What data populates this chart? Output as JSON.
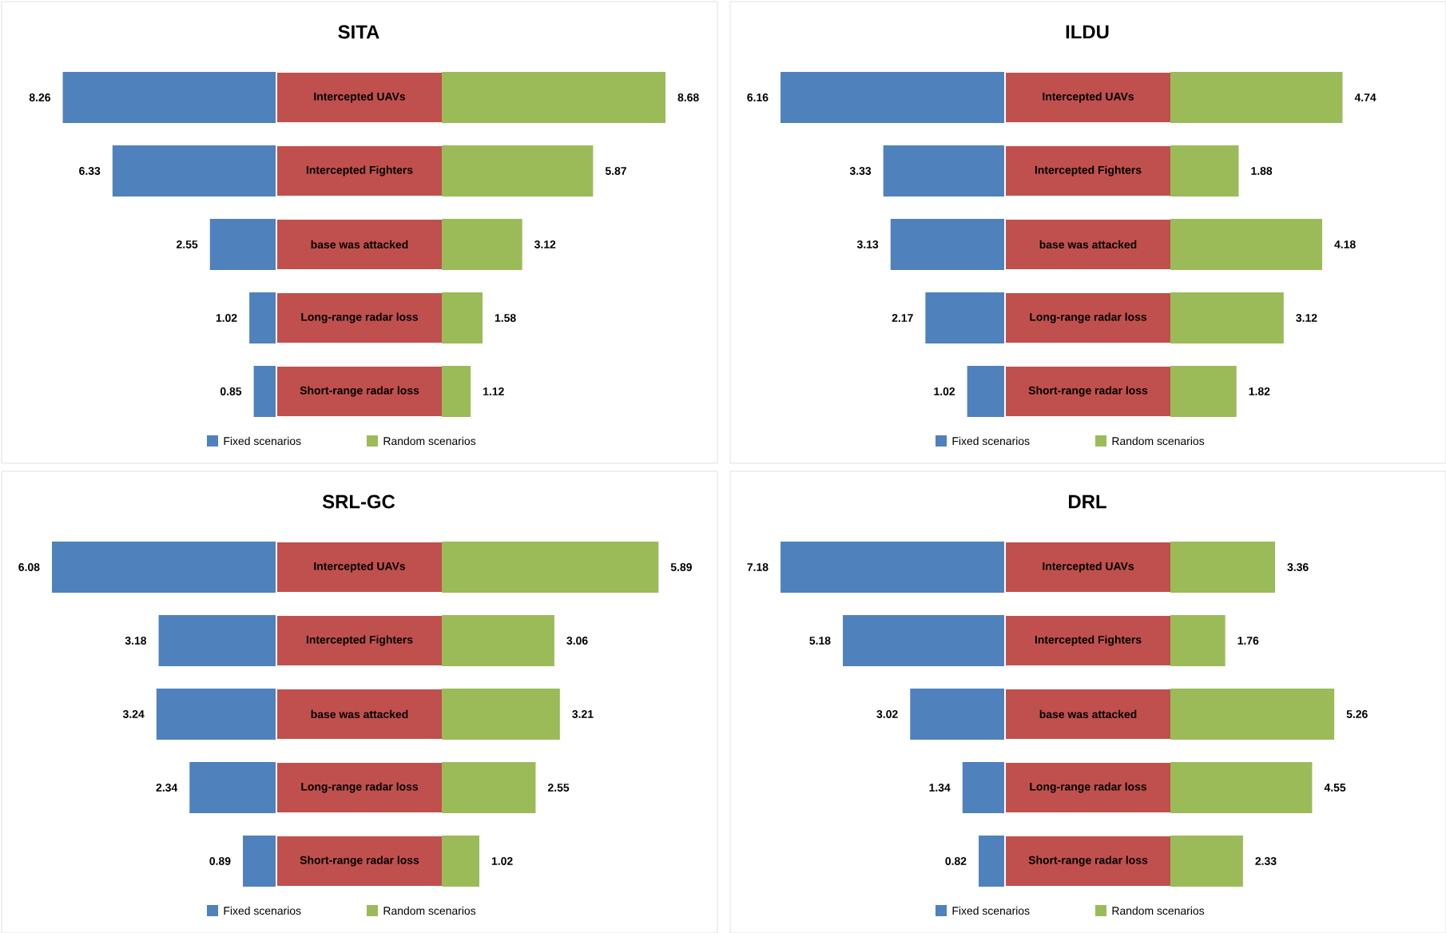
{
  "chart_data": [
    {
      "type": "bar",
      "orientation": "horizontal",
      "title": "SITA",
      "categories": [
        "Intercepted UAVs",
        "Intercepted Fighters",
        "base was attacked",
        "Long-range radar loss",
        "Short-range radar loss"
      ],
      "data_labels": true,
      "legend": "bottom",
      "series": [
        {
          "name": "Fixed scenarios",
          "color": "#4f81bd",
          "values": [
            8.26,
            6.33,
            2.55,
            1.02,
            0.85
          ]
        }
      ]
    },
    {
      "type": "bar",
      "orientation": "horizontal",
      "categories": [
        null,
        null,
        null,
        null,
        null
      ],
      "data_labels": true,
      "legend": "bottom",
      "series": [
        {
          "name": "Random scenarios",
          "color": "#9bbb59",
          "values": [
            8.68,
            5.87,
            3.12,
            1.58,
            1.12
          ]
        }
      ]
    },
    {
      "type": "bar",
      "orientation": "horizontal",
      "title": "ILDU",
      "categories": [
        "Intercepted UAVs",
        "Intercepted Fighters",
        "base was attacked",
        "Long-range radar loss",
        "Short-range radar loss"
      ],
      "data_labels": true,
      "legend": "bottom",
      "series": [
        {
          "name": "Fixed scenarios",
          "color": "#4f81bd",
          "values": [
            6.16,
            3.33,
            3.13,
            2.17,
            1.02
          ]
        }
      ]
    },
    {
      "type": "bar",
      "orientation": "horizontal",
      "categories": [
        null,
        null,
        null,
        null,
        null
      ],
      "data_labels": true,
      "legend": "bottom",
      "series": [
        {
          "name": "Random scenarios",
          "color": "#9bbb59",
          "values": [
            4.74,
            1.88,
            4.18,
            3.12,
            1.82
          ]
        }
      ]
    },
    {
      "type": "bar",
      "orientation": "horizontal",
      "title": "SRL-GC",
      "categories": [
        "Intercepted UAVs",
        "Intercepted Fighters",
        "base was attacked",
        "Long-range radar loss",
        "Short-range radar loss"
      ],
      "data_labels": true,
      "legend": "bottom",
      "series": [
        {
          "name": "Fixed scenarios",
          "color": "#4f81bd",
          "values": [
            6.08,
            3.18,
            3.24,
            2.34,
            0.89
          ]
        }
      ]
    },
    {
      "type": "bar",
      "orientation": "horizontal",
      "categories": [
        null,
        null,
        null,
        null,
        null
      ],
      "data_labels": true,
      "legend": "bottom",
      "series": [
        {
          "name": "Random scenarios",
          "color": "#9bbb59",
          "values": [
            5.89,
            3.06,
            3.21,
            2.55,
            1.02
          ]
        }
      ]
    },
    {
      "type": "bar",
      "orientation": "horizontal",
      "title": "DRL",
      "categories": [
        "Intercepted UAVs",
        "Intercepted Fighters",
        "base was attacked",
        "Long-range radar loss",
        "Short-range radar loss"
      ],
      "data_labels": true,
      "legend": "bottom",
      "series": [
        {
          "name": "Fixed scenarios",
          "color": "#4f81bd",
          "values": [
            7.18,
            5.18,
            3.02,
            1.34,
            0.82
          ]
        }
      ]
    },
    {
      "type": "bar",
      "orientation": "horizontal",
      "categories": [
        null,
        null,
        null,
        null,
        null
      ],
      "data_labels": true,
      "legend": "bottom",
      "series": [
        {
          "name": "Random scenarios",
          "color": "#9bbb59",
          "values": [
            3.36,
            1.76,
            5.26,
            4.55,
            2.33
          ]
        }
      ]
    }
  ]
}
